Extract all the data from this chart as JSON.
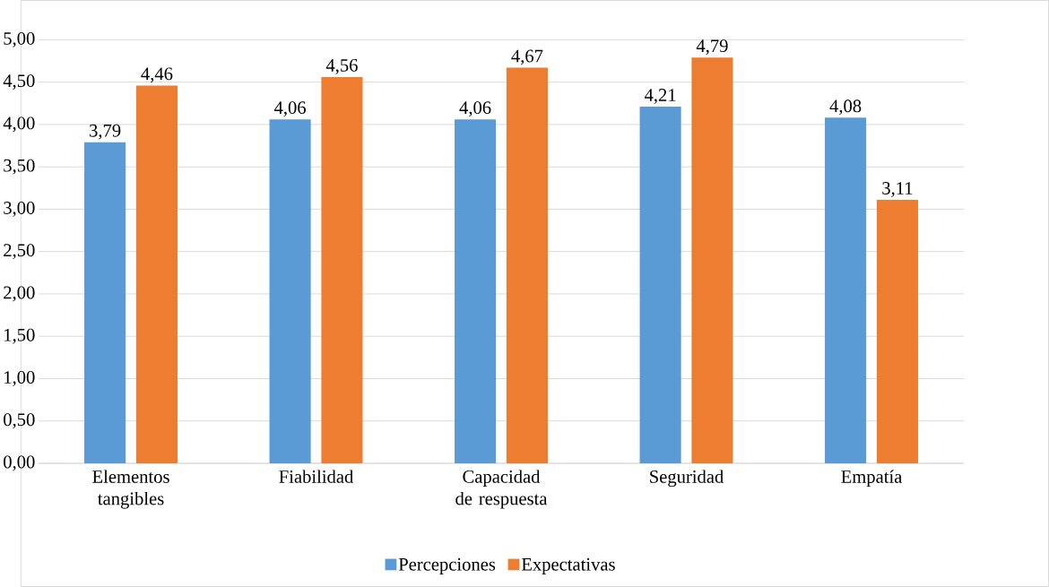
{
  "chart_data": {
    "type": "bar",
    "categories": [
      "Elementos tangibles",
      "Fiabilidad",
      "Capacidad de respuesta",
      "Seguridad",
      "Empatía"
    ],
    "series": [
      {
        "name": "Percepciones",
        "color": "#5b9bd5",
        "values": [
          3.79,
          4.06,
          4.06,
          4.21,
          4.08
        ],
        "value_labels": [
          "3,79",
          "4,06",
          "4,06",
          "4,21",
          "4,08"
        ]
      },
      {
        "name": "Expectativas",
        "color": "#ed7d31",
        "values": [
          4.46,
          4.56,
          4.67,
          4.79,
          3.11
        ],
        "value_labels": [
          "4,46",
          "4,56",
          "4,67",
          "4,79",
          "3,11"
        ]
      }
    ],
    "ylim": [
      0,
      5
    ],
    "yticks": [
      {
        "value": 0,
        "label": "0,00"
      },
      {
        "value": 0.5,
        "label": "0,50"
      },
      {
        "value": 1,
        "label": "1,00"
      },
      {
        "value": 1.5,
        "label": "1,50"
      },
      {
        "value": 2,
        "label": "2,00"
      },
      {
        "value": 2.5,
        "label": "2,50"
      },
      {
        "value": 3,
        "label": "3,00"
      },
      {
        "value": 3.5,
        "label": "3,50"
      },
      {
        "value": 4,
        "label": "4,00"
      },
      {
        "value": 4.5,
        "label": "4,50"
      },
      {
        "value": 5,
        "label": "5,00"
      }
    ],
    "grid": "y",
    "legend": "bottom"
  }
}
